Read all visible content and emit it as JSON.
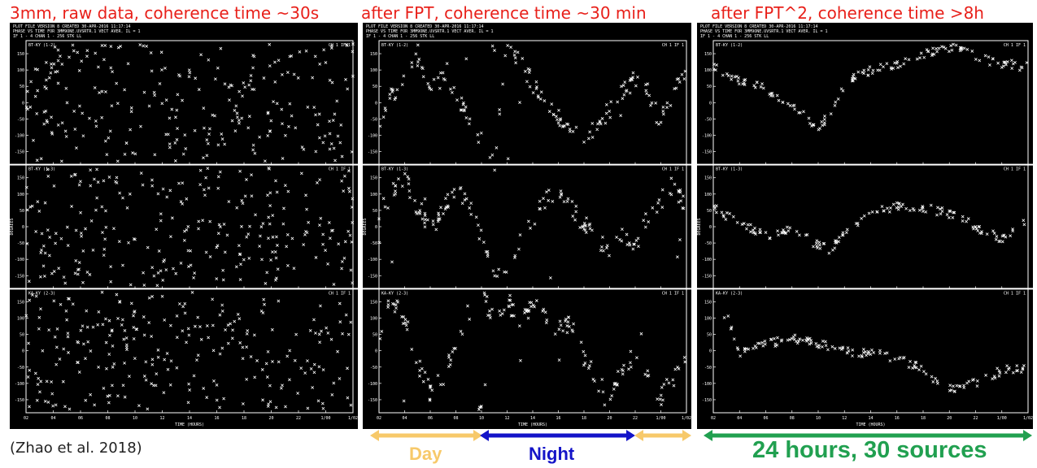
{
  "titles": [
    "3mm, raw data, coherence time ~30s",
    "after FPT, coherence time ~30 min",
    "after FPT^2, coherence time >8h"
  ],
  "panel_header": {
    "line1": "PLOT FILE VERSION 8  CREATED 30-APR-2016 11:17:14",
    "line2": "PHASE VS TIME  FOR 3MM9ONE.UVSRTR.1  VECT AVER.  IL = 1",
    "line3": "IF 1 - 4   CHAN 1 - 256   STK LL"
  },
  "subplot_labels": [
    "BT-KY (1-2)",
    "BT-KY (1-3)",
    "KA-KY (2-3)"
  ],
  "subplot_corner": [
    "CH 1 IF 1",
    "CH 1 IF 1",
    "CH 1 IF 1"
  ],
  "x_axis_title": "TIME (HOURS)",
  "y_axis_title": "DEGREES",
  "citation": "(Zhao et al. 2018)",
  "day_label": "Day",
  "night_label": "Night",
  "summary_label": "24 hours, 30 sources",
  "colors": {
    "title": "#e8201a",
    "day": "#f7c96a",
    "night": "#1414c8",
    "summary": "#21a050"
  },
  "chart_data": [
    {
      "type": "scatter",
      "title": "3mm, raw data, coherence time ~30s",
      "xlabel": "TIME (HOURS)",
      "ylabel": "DEGREES",
      "xlim": [
        2,
        26
      ],
      "ylim": [
        -180,
        180
      ],
      "x_ticks": [
        "02",
        "04",
        "06",
        "08",
        "10",
        "12",
        "14",
        "16",
        "18",
        "20",
        "22",
        "1/00",
        "1/02"
      ],
      "y_ticks": [
        "150",
        "100",
        "50",
        "0",
        "-50",
        "-100",
        "-150"
      ],
      "subplots": [
        {
          "name": "BT-KY (1-2)",
          "trend": "random"
        },
        {
          "name": "BT-KY (1-3)",
          "trend": "random"
        },
        {
          "name": "KA-KY (2-3)",
          "trend": "random"
        }
      ]
    },
    {
      "type": "scatter",
      "title": "after FPT, coherence time ~30 min",
      "xlabel": "TIME (HOURS)",
      "ylabel": "DEGREES",
      "xlim": [
        2,
        26
      ],
      "ylim": [
        -180,
        180
      ],
      "x_ticks": [
        "02",
        "04",
        "06",
        "08",
        "10",
        "12",
        "14",
        "16",
        "18",
        "20",
        "22",
        "1/00",
        "1/02"
      ],
      "y_ticks": [
        "150",
        "100",
        "50",
        "0",
        "-50",
        "-100",
        "-150"
      ],
      "subplots": [
        {
          "name": "BT-KY (1-2)",
          "trend": "drift",
          "path": [
            [
              2,
              -60
            ],
            [
              3,
              20
            ],
            [
              4,
              90
            ],
            [
              5,
              130
            ],
            [
              6,
              40
            ],
            [
              7,
              80
            ],
            [
              8,
              10
            ],
            [
              9,
              -40
            ],
            [
              10,
              -120
            ],
            [
              11,
              -180
            ],
            [
              12,
              170
            ],
            [
              13,
              120
            ],
            [
              14,
              60
            ],
            [
              15,
              20
            ],
            [
              16,
              -40
            ],
            [
              17,
              -80
            ],
            [
              18,
              -120
            ],
            [
              19,
              -70
            ],
            [
              20,
              -20
            ],
            [
              21,
              30
            ],
            [
              22,
              70
            ],
            [
              23,
              20
            ],
            [
              24,
              -60
            ],
            [
              25,
              40
            ],
            [
              26,
              90
            ]
          ]
        },
        {
          "name": "BT-KY (1-3)",
          "trend": "drift",
          "path": [
            [
              2,
              40
            ],
            [
              3,
              100
            ],
            [
              4,
              150
            ],
            [
              5,
              60
            ],
            [
              6,
              -20
            ],
            [
              7,
              60
            ],
            [
              8,
              120
            ],
            [
              9,
              80
            ],
            [
              10,
              -40
            ],
            [
              11,
              -160
            ],
            [
              12,
              -120
            ],
            [
              13,
              -40
            ],
            [
              14,
              20
            ],
            [
              15,
              80
            ],
            [
              16,
              110
            ],
            [
              17,
              60
            ],
            [
              18,
              10
            ],
            [
              19,
              -40
            ],
            [
              20,
              -80
            ],
            [
              21,
              -20
            ],
            [
              22,
              -60
            ],
            [
              23,
              30
            ],
            [
              24,
              80
            ],
            [
              25,
              130
            ],
            [
              26,
              60
            ]
          ]
        },
        {
          "name": "KA-KY (2-3)",
          "trend": "drift",
          "path": [
            [
              2,
              60
            ],
            [
              3,
              160
            ],
            [
              4,
              100
            ],
            [
              5,
              -40
            ],
            [
              6,
              -130
            ],
            [
              7,
              -80
            ],
            [
              8,
              20
            ],
            [
              9,
              120
            ],
            [
              10,
              170
            ],
            [
              11,
              100
            ],
            [
              12,
              160
            ],
            [
              13,
              80
            ],
            [
              14,
              140
            ],
            [
              15,
              110
            ],
            [
              16,
              60
            ],
            [
              17,
              90
            ],
            [
              18,
              -20
            ],
            [
              19,
              -90
            ],
            [
              20,
              -150
            ],
            [
              21,
              -60
            ],
            [
              22,
              -10
            ],
            [
              23,
              -90
            ],
            [
              24,
              -140
            ],
            [
              25,
              -80
            ],
            [
              26,
              -30
            ]
          ]
        }
      ]
    },
    {
      "type": "scatter",
      "title": "after FPT^2, coherence time >8h",
      "xlabel": "TIME (HOURS)",
      "ylabel": "DEGREES",
      "xlim": [
        2,
        26
      ],
      "ylim": [
        -180,
        180
      ],
      "x_ticks": [
        "02",
        "04",
        "06",
        "08",
        "10",
        "12",
        "14",
        "16",
        "18",
        "20",
        "22",
        "1/00",
        "1/02"
      ],
      "y_ticks": [
        "150",
        "100",
        "50",
        "0",
        "-50",
        "-100",
        "-150"
      ],
      "subplots": [
        {
          "name": "BT-KY (1-2)",
          "trend": "smooth",
          "path": [
            [
              2,
              110
            ],
            [
              4,
              70
            ],
            [
              6,
              40
            ],
            [
              8,
              -10
            ],
            [
              10,
              -80
            ],
            [
              11,
              -30
            ],
            [
              12,
              60
            ],
            [
              14,
              100
            ],
            [
              16,
              120
            ],
            [
              18,
              150
            ],
            [
              20,
              170
            ],
            [
              22,
              140
            ],
            [
              24,
              120
            ],
            [
              26,
              110
            ]
          ]
        },
        {
          "name": "BT-KY (1-3)",
          "trend": "smooth",
          "path": [
            [
              2,
              60
            ],
            [
              4,
              10
            ],
            [
              6,
              -30
            ],
            [
              8,
              0
            ],
            [
              10,
              -60
            ],
            [
              11,
              -70
            ],
            [
              12,
              -20
            ],
            [
              14,
              40
            ],
            [
              16,
              60
            ],
            [
              18,
              60
            ],
            [
              20,
              40
            ],
            [
              22,
              0
            ],
            [
              24,
              -40
            ],
            [
              26,
              20
            ]
          ]
        },
        {
          "name": "KA-KY (2-3)",
          "trend": "smooth",
          "path": [
            [
              2,
              70
            ],
            [
              3,
              120
            ],
            [
              4,
              -10
            ],
            [
              6,
              20
            ],
            [
              8,
              40
            ],
            [
              10,
              20
            ],
            [
              12,
              0
            ],
            [
              14,
              -10
            ],
            [
              16,
              -20
            ],
            [
              18,
              -60
            ],
            [
              20,
              -120
            ],
            [
              22,
              -100
            ],
            [
              24,
              -60
            ],
            [
              26,
              -50
            ]
          ]
        }
      ]
    }
  ]
}
